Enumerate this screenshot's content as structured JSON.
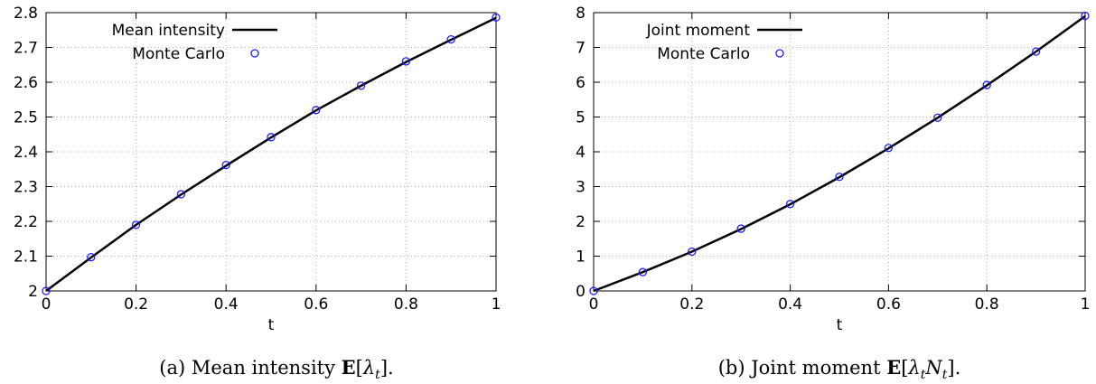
{
  "chart_data": [
    {
      "type": "line",
      "xlabel": "t",
      "ylabel": "",
      "xlim": [
        0,
        1
      ],
      "ylim": [
        2,
        2.8
      ],
      "xticks": [
        "0",
        "0.2",
        "0.4",
        "0.6",
        "0.8",
        "1"
      ],
      "yticks": [
        "2",
        "2.1",
        "2.2",
        "2.3",
        "2.4",
        "2.5",
        "2.6",
        "2.7",
        "2.8"
      ],
      "grid": true,
      "legend_position": "top-left",
      "caption": {
        "prefix": "(a) Mean intensity ",
        "expr_bb": "E",
        "expr_open": "[",
        "expr_var": "λ",
        "expr_sub": "t",
        "expr_close": "].",
        "expr_var2": ""
      },
      "series": [
        {
          "name": "Mean intensity",
          "kind": "line",
          "color": "#000000",
          "x": [
            0,
            0.1,
            0.2,
            0.3,
            0.4,
            0.5,
            0.6,
            0.7,
            0.8,
            0.9,
            1.0
          ],
          "y": [
            2.0,
            2.096,
            2.19,
            2.277,
            2.36,
            2.441,
            2.519,
            2.59,
            2.658,
            2.722,
            2.785
          ]
        },
        {
          "name": "Monte Carlo",
          "kind": "points",
          "color": "#1a1aff",
          "x": [
            0,
            0.1,
            0.2,
            0.3,
            0.4,
            0.5,
            0.6,
            0.7,
            0.8,
            0.9,
            1.0
          ],
          "y": [
            2.0,
            2.097,
            2.19,
            2.278,
            2.362,
            2.442,
            2.52,
            2.59,
            2.66,
            2.723,
            2.786
          ]
        }
      ]
    },
    {
      "type": "line",
      "xlabel": "t",
      "ylabel": "",
      "xlim": [
        0,
        1
      ],
      "ylim": [
        0,
        8
      ],
      "xticks": [
        "0",
        "0.2",
        "0.4",
        "0.6",
        "0.8",
        "1"
      ],
      "yticks": [
        "0",
        "1",
        "2",
        "3",
        "4",
        "5",
        "6",
        "7",
        "8"
      ],
      "grid": true,
      "legend_position": "top-left",
      "caption": {
        "prefix": "(b) Joint moment ",
        "expr_bb": "E",
        "expr_open": "[",
        "expr_var": "λ",
        "expr_sub": "t",
        "expr_close": "].",
        "expr_var2": "N"
      },
      "series": [
        {
          "name": "Joint moment",
          "kind": "line",
          "color": "#000000",
          "x": [
            0,
            0.1,
            0.2,
            0.3,
            0.4,
            0.5,
            0.6,
            0.7,
            0.8,
            0.9,
            1.0
          ],
          "y": [
            0.0,
            0.54,
            1.13,
            1.78,
            2.49,
            3.27,
            4.1,
            4.98,
            5.91,
            6.88,
            7.9
          ]
        },
        {
          "name": "Monte Carlo",
          "kind": "points",
          "color": "#1a1aff",
          "x": [
            0,
            0.1,
            0.2,
            0.3,
            0.4,
            0.5,
            0.6,
            0.7,
            0.8,
            0.9,
            1.0
          ],
          "y": [
            0.0,
            0.54,
            1.13,
            1.79,
            2.5,
            3.28,
            4.11,
            4.98,
            5.92,
            6.88,
            7.91
          ]
        }
      ]
    }
  ]
}
